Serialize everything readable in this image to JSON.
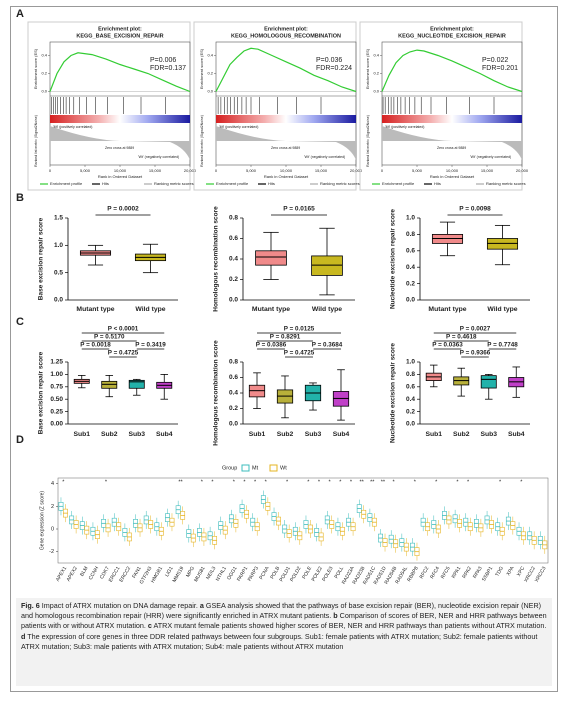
{
  "panel_labels": [
    "A",
    "B",
    "C",
    "D"
  ],
  "gsea": [
    {
      "title1": "Enrichment plot:",
      "title2": "KEGG_BASE_EXCISION_REPAIR",
      "p": "P=0.006",
      "fdr": "FDR=0.137",
      "zero_cross": "Zero cross at 9889",
      "x": [
        0,
        1000,
        2000,
        3000,
        4000,
        6000,
        8000,
        10000,
        12000,
        14000,
        16000,
        18000,
        19000,
        20000
      ],
      "es": [
        0,
        0.2,
        0.33,
        0.4,
        0.43,
        0.41,
        0.36,
        0.3,
        0.25,
        0.2,
        0.13,
        0.06,
        0.03,
        0
      ],
      "hits": [
        200,
        500,
        800,
        1100,
        1500,
        1900,
        2300,
        2800,
        3400,
        4200,
        5200,
        6500,
        8200,
        10500,
        13000,
        16500
      ]
    },
    {
      "title1": "Enrichment plot:",
      "title2": "KEGG_HOMOLOGOUS_RECOMBINATION",
      "p": "P=0.036",
      "fdr": "FDR=0.224",
      "zero_cross": "Zero cross at 9889",
      "x": [
        0,
        1000,
        2000,
        3000,
        4000,
        5000,
        6000,
        8000,
        10000,
        12000,
        14000,
        16000,
        18000,
        20000
      ],
      "es": [
        0,
        0.15,
        0.3,
        0.38,
        0.45,
        0.48,
        0.47,
        0.4,
        0.33,
        0.26,
        0.18,
        0.12,
        0.05,
        0
      ],
      "hits": [
        300,
        700,
        1200,
        1600,
        2100,
        2600,
        3100,
        3700,
        4300,
        5000,
        6200,
        8800,
        11500,
        15000
      ]
    },
    {
      "title1": "Enrichment plot:",
      "title2": "KEGG_NUCLEOTIDE_EXCISION_REPAIR",
      "p": "P=0.022",
      "fdr": "FDR=0.201",
      "zero_cross": "Zero cross at 9889",
      "x": [
        0,
        1000,
        2000,
        3000,
        4000,
        5000,
        6000,
        8000,
        10000,
        12000,
        14000,
        16000,
        18000,
        20000
      ],
      "es": [
        0,
        0.18,
        0.32,
        0.4,
        0.44,
        0.46,
        0.45,
        0.4,
        0.34,
        0.27,
        0.2,
        0.12,
        0.05,
        0
      ],
      "hits": [
        150,
        450,
        900,
        1300,
        1700,
        2200,
        2700,
        3300,
        3900,
        4700,
        5600,
        7000,
        9200,
        12500,
        16000
      ]
    }
  ],
  "gsea_axes": {
    "es_label": "Enrichment score (ES)",
    "metric_label": "Ranked list metric (Signal2Noise)",
    "xlabel": "Rank in Ordered Dataset",
    "pos_label": "'Mt' (positively correlated)",
    "neg_label": "'Wt' (negatively correlated)",
    "xlim": [
      0,
      20000
    ],
    "xticks": [
      0,
      {
        "value": 5000,
        "label": "5,000"
      },
      {
        "value": 10000,
        "label": "10,000"
      },
      {
        "value": 15000,
        "label": "15,000"
      },
      {
        "value": 20000,
        "label": "20,000"
      }
    ],
    "ylim": [
      -0.05,
      0.55
    ],
    "yticks": [
      {
        "value": 0,
        "label": "0.0"
      },
      {
        "value": 0.2,
        "label": "0.2"
      },
      {
        "value": 0.4,
        "label": "0.4"
      }
    ],
    "legend": [
      "Enrichment profile",
      "Hits",
      "Ranking metric scores"
    ],
    "curve_color": "#33cc33"
  },
  "b": [
    {
      "ylabel": "Base excision repair score",
      "p_value": "P = 0.0002",
      "ylim": [
        0,
        1.5
      ],
      "yticks": [
        {
          "value": 0,
          "label": "0.0"
        },
        {
          "value": 0.5,
          "label": "0.5"
        },
        {
          "value": 1,
          "label": "1.0"
        },
        {
          "value": 1.5,
          "label": "1.5"
        }
      ],
      "categories": [
        "Mutant type",
        "Wild type"
      ],
      "colors": [
        "#f08a8a",
        "#c8b820"
      ],
      "boxes": [
        {
          "whislo": 0.64,
          "q1": 0.82,
          "med": 0.86,
          "q3": 0.9,
          "whishi": 1.0
        },
        {
          "whislo": 0.5,
          "q1": 0.72,
          "med": 0.78,
          "q3": 0.84,
          "whishi": 1.02
        }
      ]
    },
    {
      "ylabel": "Homologous recombination score",
      "p_value": "P = 0.0165",
      "ylim": [
        0,
        0.8
      ],
      "yticks": [
        {
          "value": 0,
          "label": "0.0"
        },
        {
          "value": 0.2,
          "label": "0.2"
        },
        {
          "value": 0.4,
          "label": "0.4"
        },
        {
          "value": 0.6,
          "label": "0.6"
        },
        {
          "value": 0.8,
          "label": "0.8"
        }
      ],
      "categories": [
        "Mutant type",
        "Wild type"
      ],
      "colors": [
        "#f08a8a",
        "#c8b820"
      ],
      "boxes": [
        {
          "whislo": 0.2,
          "q1": 0.34,
          "med": 0.42,
          "q3": 0.48,
          "whishi": 0.66
        },
        {
          "whislo": 0.05,
          "q1": 0.24,
          "med": 0.34,
          "q3": 0.43,
          "whishi": 0.7
        }
      ]
    },
    {
      "ylabel": "Nucleotide excision repair score",
      "p_value": "P = 0.0098",
      "ylim": [
        0,
        1.0
      ],
      "yticks": [
        {
          "value": 0,
          "label": "0.0"
        },
        {
          "value": 0.2,
          "label": "0.2"
        },
        {
          "value": 0.4,
          "label": "0.4"
        },
        {
          "value": 0.6,
          "label": "0.6"
        },
        {
          "value": 0.8,
          "label": "0.8"
        },
        {
          "value": 1,
          "label": "1.0"
        }
      ],
      "categories": [
        "Mutant type",
        "Wild type"
      ],
      "colors": [
        "#f08a8a",
        "#c8b820"
      ],
      "boxes": [
        {
          "whislo": 0.54,
          "q1": 0.69,
          "med": 0.75,
          "q3": 0.8,
          "whishi": 0.95
        },
        {
          "whislo": 0.43,
          "q1": 0.62,
          "med": 0.69,
          "q3": 0.75,
          "whishi": 0.91
        }
      ]
    }
  ],
  "c": [
    {
      "ylabel": "Base excision repair score",
      "p_values": [
        "P < 0.0001",
        "P = 0.5170",
        "P = 0.0018",
        "P = 0.3419",
        "P = 0.4725"
      ],
      "ylim": [
        0,
        1.25
      ],
      "yticks": [
        {
          "value": 0,
          "label": "0.00"
        },
        {
          "value": 0.25,
          "label": "0.25"
        },
        {
          "value": 0.5,
          "label": "0.50"
        },
        {
          "value": 0.75,
          "label": "0.75"
        },
        {
          "value": 1,
          "label": "1.00"
        },
        {
          "value": 1.25,
          "label": "1.25"
        }
      ],
      "categories": [
        "Sub1",
        "Sub2",
        "Sub3",
        "Sub4"
      ],
      "colors": [
        "#f08a8a",
        "#b8b03a",
        "#22b2aa",
        "#c040c8"
      ],
      "boxes": [
        {
          "whislo": 0.73,
          "q1": 0.82,
          "med": 0.86,
          "q3": 0.9,
          "whishi": 0.98
        },
        {
          "whislo": 0.55,
          "q1": 0.72,
          "med": 0.8,
          "q3": 0.86,
          "whishi": 0.98
        },
        {
          "whislo": 0.58,
          "q1": 0.72,
          "med": 0.85,
          "q3": 0.88,
          "whishi": 0.9
        },
        {
          "whislo": 0.5,
          "q1": 0.72,
          "med": 0.78,
          "q3": 0.84,
          "whishi": 1.0
        }
      ]
    },
    {
      "ylabel": "Homologous recombination score",
      "p_values": [
        "P = 0.0125",
        "P = 0.8291",
        "P = 0.0386",
        "P = 0.3684",
        "P = 0.4725"
      ],
      "ylim": [
        0,
        0.8
      ],
      "yticks": [
        {
          "value": 0,
          "label": "0.0"
        },
        {
          "value": 0.2,
          "label": "0.2"
        },
        {
          "value": 0.4,
          "label": "0.4"
        },
        {
          "value": 0.6,
          "label": "0.6"
        },
        {
          "value": 0.8,
          "label": "0.8"
        }
      ],
      "categories": [
        "Sub1",
        "Sub2",
        "Sub3",
        "Sub4"
      ],
      "colors": [
        "#f08a8a",
        "#b8b03a",
        "#22b2aa",
        "#c040c8"
      ],
      "boxes": [
        {
          "whislo": 0.2,
          "q1": 0.35,
          "med": 0.43,
          "q3": 0.5,
          "whishi": 0.66
        },
        {
          "whislo": 0.08,
          "q1": 0.27,
          "med": 0.36,
          "q3": 0.44,
          "whishi": 0.62
        },
        {
          "whislo": 0.18,
          "q1": 0.3,
          "med": 0.4,
          "q3": 0.5,
          "whishi": 0.53
        },
        {
          "whislo": 0.05,
          "q1": 0.23,
          "med": 0.33,
          "q3": 0.42,
          "whishi": 0.7
        }
      ]
    },
    {
      "ylabel": "Nucleotide excision repair score",
      "p_values": [
        "P = 0.0027",
        "P = 0.4618",
        "P = 0.0363",
        "P = 0.7748",
        "P = 0.9366"
      ],
      "ylim": [
        0,
        1.0
      ],
      "yticks": [
        {
          "value": 0,
          "label": "0.0"
        },
        {
          "value": 0.2,
          "label": "0.2"
        },
        {
          "value": 0.4,
          "label": "0.4"
        },
        {
          "value": 0.6,
          "label": "0.6"
        },
        {
          "value": 0.8,
          "label": "0.8"
        },
        {
          "value": 1,
          "label": "1.0"
        }
      ],
      "categories": [
        "Sub1",
        "Sub2",
        "Sub3",
        "Sub4"
      ],
      "colors": [
        "#f08a8a",
        "#b8b03a",
        "#22b2aa",
        "#c040c8"
      ],
      "boxes": [
        {
          "whislo": 0.6,
          "q1": 0.7,
          "med": 0.76,
          "q3": 0.82,
          "whishi": 0.95
        },
        {
          "whislo": 0.45,
          "q1": 0.63,
          "med": 0.7,
          "q3": 0.76,
          "whishi": 0.9
        },
        {
          "whislo": 0.4,
          "q1": 0.58,
          "med": 0.72,
          "q3": 0.78,
          "whishi": 0.8
        },
        {
          "whislo": 0.43,
          "q1": 0.6,
          "med": 0.68,
          "q3": 0.75,
          "whishi": 0.92
        }
      ]
    }
  ],
  "d": {
    "legend_title": "Group",
    "series": [
      {
        "name": "Mt",
        "color": "#3cbcbc"
      },
      {
        "name": "Wt",
        "color": "#e6b422"
      }
    ],
    "ylabel": "Gene expression (Z score)",
    "ylim": [
      -3,
      4.5
    ],
    "yticks": [
      -2,
      0,
      2,
      4
    ],
    "genes": [
      "APEX1",
      "APEX2",
      "BLM",
      "CCNH",
      "CDK7",
      "ERCC1",
      "ERCC2",
      "FAN1",
      "GTF2H3",
      "HMGB1",
      "LIG1",
      "MMS19",
      "MPG",
      "MUS81",
      "NEIL3",
      "NTHL1",
      "OGG1",
      "PARP1",
      "PARP3",
      "PCNA",
      "POLB",
      "POLD1",
      "POLD2",
      "POLE",
      "POLE2",
      "POLE3",
      "POLL",
      "RAD23A",
      "RAD23B",
      "RAD51C",
      "RAD51D",
      "RAD54B",
      "RAD54L",
      "RBBP8",
      "RFC2",
      "RFC4",
      "RFC5",
      "RPA1",
      "RPA2",
      "RPA3",
      "SSBP1",
      "TDG",
      "XPA",
      "XPC",
      "XRCC2",
      "XRCC3"
    ],
    "mt": [
      2.0,
      0.8,
      0.3,
      -0.2,
      0.5,
      0.6,
      -0.3,
      0.5,
      0.8,
      0.2,
      1.0,
      1.7,
      -0.4,
      -0.3,
      -0.6,
      0.3,
      0.9,
      1.8,
      0.6,
      2.6,
      1.1,
      0.0,
      -0.2,
      0.4,
      -0.3,
      0.8,
      0.2,
      0.6,
      1.8,
      1.0,
      -0.8,
      -0.9,
      -1.2,
      -1.6,
      0.6,
      0.4,
      1.2,
      0.9,
      0.6,
      0.5,
      0.8,
      0.2,
      0.7,
      -0.2,
      -0.6,
      -1.0
    ],
    "wt": [
      1.4,
      0.4,
      -0.1,
      -0.5,
      0.1,
      0.2,
      -0.7,
      0.1,
      0.4,
      -0.2,
      0.6,
      1.2,
      -0.8,
      -0.7,
      -1.0,
      -0.1,
      0.5,
      1.3,
      0.2,
      2.0,
      0.7,
      -0.4,
      -0.6,
      0.0,
      -0.7,
      0.4,
      -0.2,
      0.2,
      1.3,
      0.6,
      -1.2,
      -1.3,
      -1.6,
      -2.0,
      0.2,
      0.0,
      0.8,
      0.5,
      0.2,
      0.1,
      0.4,
      -0.2,
      0.3,
      -0.6,
      -1.0,
      -1.4
    ],
    "stars": [
      "*",
      null,
      null,
      null,
      "*",
      null,
      null,
      null,
      null,
      null,
      null,
      "**",
      null,
      "*",
      "*",
      null,
      "*",
      "*",
      "*",
      "*",
      null,
      "*",
      null,
      "*",
      "*",
      "*",
      "*",
      "*",
      "**",
      "**",
      "**",
      "*",
      null,
      "*",
      null,
      "*",
      null,
      "*",
      "*",
      null,
      null,
      "*",
      null,
      "*",
      null,
      null
    ]
  },
  "caption": {
    "label": "Fig. 6",
    "parts": [
      " Impact of ATRX mutation on DNA damage repair. ",
      "a",
      " GSEA analysis showed that the pathways of base excision repair (BER), nucleotide excision repair (NER) and homologous recombination repair (HRR) were significantly enriched in ATRX mutant patients. ",
      "b",
      " Comparison of scores of BER, NER and HRR pathways between patients with or without ATRX mutation. ",
      "c",
      " ATRX mutant female patients showed higher scores of BER, NER and HRR pathways than patients without ATRX mutation. ",
      "d",
      " The expression of core genes in three DDR related pathways between four subgroups. Sub1: female patients with ATRX mutation; Sub2: female patients without ATRX mutation; Sub3: male patients with ATRX mutation; Sub4: male patients without ATRX mutation"
    ]
  }
}
